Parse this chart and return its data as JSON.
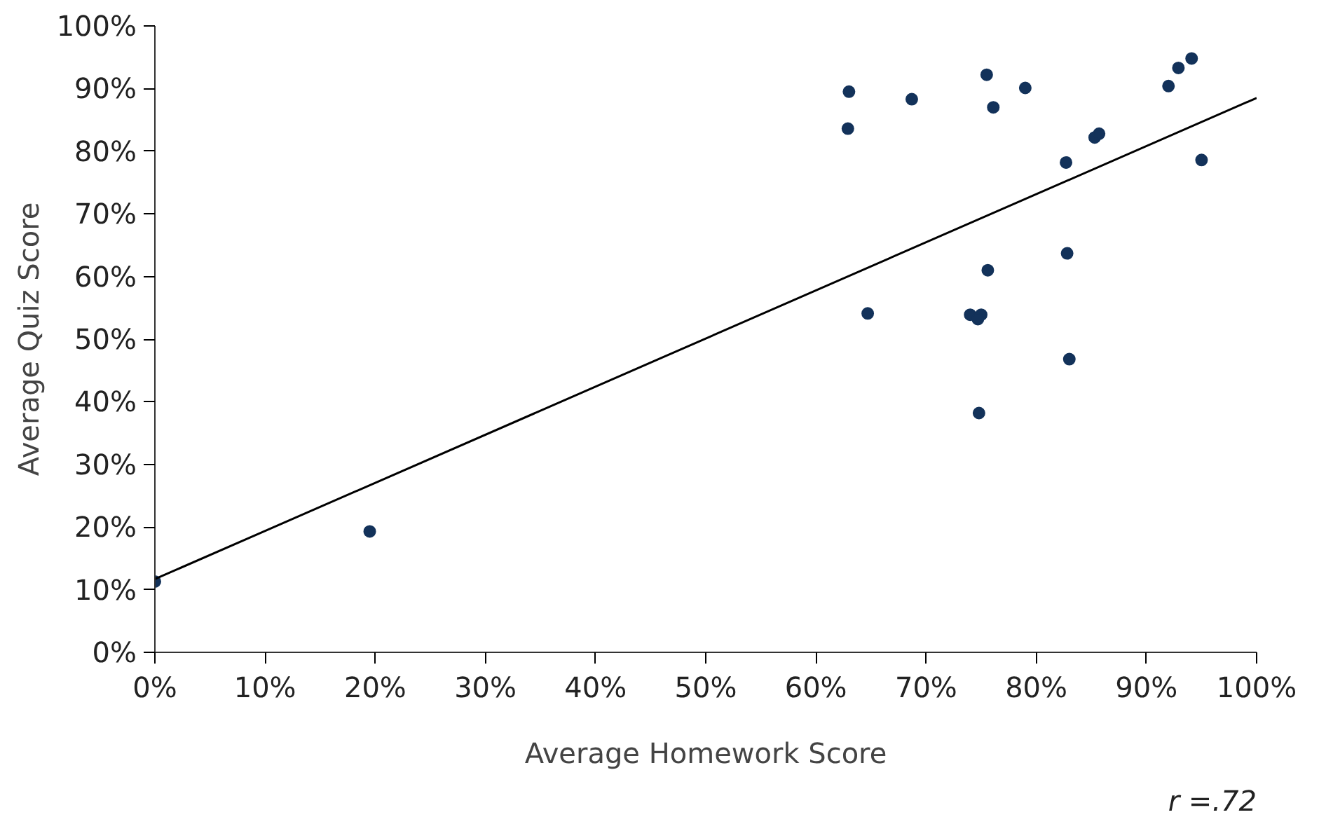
{
  "chart_data": {
    "type": "scatter",
    "xlabel": "Average Homework Score",
    "ylabel": "Average Quiz Score",
    "annotations": [
      "r =.72"
    ],
    "xlim": [
      0,
      100
    ],
    "ylim": [
      0,
      100
    ],
    "xticks": [
      {
        "value": 0,
        "label": "0%"
      },
      {
        "value": 10,
        "label": "10%"
      },
      {
        "value": 20,
        "label": "20%"
      },
      {
        "value": 30,
        "label": "30%"
      },
      {
        "value": 40,
        "label": "40%"
      },
      {
        "value": 50,
        "label": "50%"
      },
      {
        "value": 60,
        "label": "60%"
      },
      {
        "value": 70,
        "label": "70%"
      },
      {
        "value": 80,
        "label": "80%"
      },
      {
        "value": 90,
        "label": "90%"
      },
      {
        "value": 100,
        "label": "100%"
      }
    ],
    "yticks": [
      {
        "value": 0,
        "label": "0%"
      },
      {
        "value": 10,
        "label": "10%"
      },
      {
        "value": 20,
        "label": "20%"
      },
      {
        "value": 30,
        "label": "30%"
      },
      {
        "value": 40,
        "label": "40%"
      },
      {
        "value": 50,
        "label": "50%"
      },
      {
        "value": 60,
        "label": "60%"
      },
      {
        "value": 70,
        "label": "70%"
      },
      {
        "value": 80,
        "label": "80%"
      },
      {
        "value": 90,
        "label": "90%"
      },
      {
        "value": 100,
        "label": "100%"
      }
    ],
    "grid": false,
    "series": [
      {
        "marker": "circle",
        "color": "#13325a",
        "x": [
          63,
          62.9,
          68.7,
          75.5,
          76.1,
          79,
          82.7,
          85.3,
          85.7,
          92,
          92.9,
          94.1,
          95,
          82.8,
          75.6,
          64.7,
          74,
          75,
          74.7,
          83,
          74.8,
          19.5,
          0
        ],
        "values": [
          89.5,
          83.6,
          88.3,
          92.2,
          87,
          90.1,
          78.2,
          82.2,
          82.8,
          90.4,
          93.3,
          94.8,
          78.6,
          63.7,
          61,
          54.1,
          53.9,
          53.9,
          53.2,
          46.8,
          38.2,
          19.3,
          11.3
        ]
      },
      {
        "type": "line",
        "color": "#000000",
        "x": [
          0,
          100
        ],
        "values": [
          11.7,
          88.5
        ]
      }
    ]
  }
}
